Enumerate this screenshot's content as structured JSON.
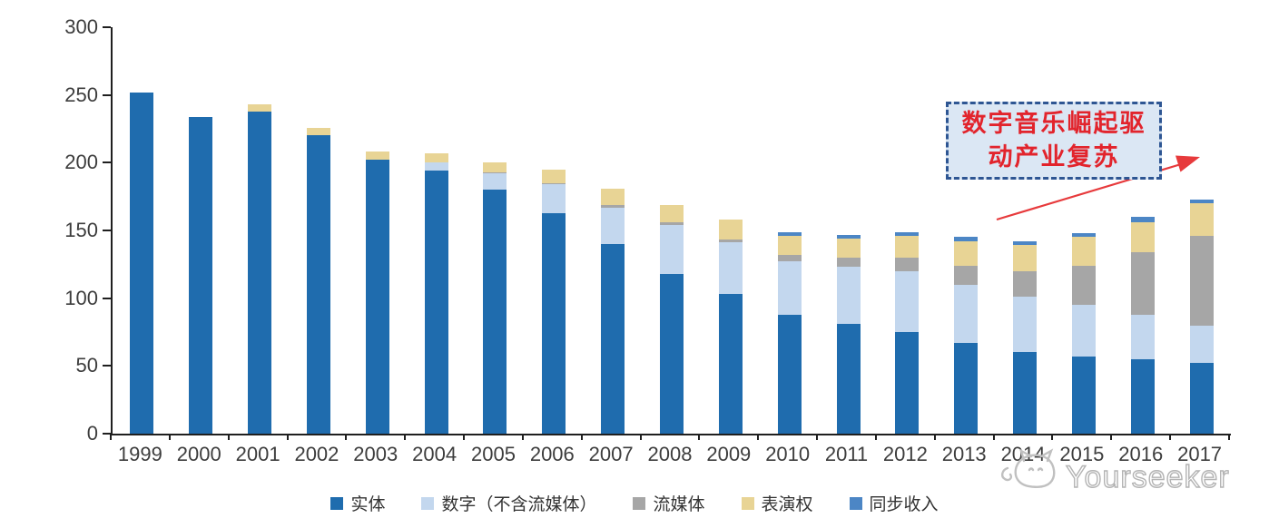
{
  "chart_data": {
    "type": "bar",
    "stacked": true,
    "title": "",
    "xlabel": "",
    "ylabel": "",
    "ylim": [
      0,
      300
    ],
    "grid": false,
    "legend_position": "bottom",
    "yticks": [
      0,
      50,
      100,
      150,
      200,
      250,
      300
    ],
    "categories": [
      "1999",
      "2000",
      "2001",
      "2002",
      "2003",
      "2004",
      "2005",
      "2006",
      "2007",
      "2008",
      "2009",
      "2010",
      "2011",
      "2012",
      "2013",
      "2014",
      "2015",
      "2016",
      "2017"
    ],
    "series": [
      {
        "name": "实体",
        "color": "#1f6cae",
        "values": [
          252,
          234,
          238,
          220,
          202,
          194,
          180,
          163,
          140,
          118,
          103,
          88,
          81,
          75,
          67,
          60,
          57,
          55,
          52
        ]
      },
      {
        "name": "数字（不含流媒体）",
        "color": "#c3d7ee",
        "values": [
          0,
          0,
          0,
          0,
          0,
          6,
          12,
          21,
          27,
          36,
          38,
          39,
          42,
          45,
          43,
          41,
          38,
          33,
          28
        ]
      },
      {
        "name": "流媒体",
        "color": "#a6a6a6",
        "values": [
          0,
          0,
          0,
          0,
          0,
          0,
          1,
          1,
          2,
          2,
          2,
          5,
          7,
          10,
          14,
          19,
          29,
          46,
          66
        ]
      },
      {
        "name": "表演权",
        "color": "#e8d495",
        "values": [
          0,
          0,
          5,
          6,
          6,
          7,
          7,
          10,
          12,
          13,
          15,
          14,
          14,
          16,
          18,
          19,
          21,
          22,
          24
        ]
      },
      {
        "name": "同步收入",
        "color": "#4c86c5",
        "values": [
          0,
          0,
          0,
          0,
          0,
          0,
          0,
          0,
          0,
          0,
          0,
          3,
          3,
          3,
          3,
          3,
          3,
          4,
          3
        ]
      }
    ]
  },
  "annotation": {
    "line1": "数字音乐崛起驱",
    "line2": "动产业复苏",
    "text_color": "#e2242c",
    "box_fill": "#dbe7f4",
    "border_color": "#2e5693",
    "arrow_color": "#e73a3c"
  },
  "watermark": {
    "text": "Yourseeker",
    "icon": "cat-logo-icon",
    "color": "#b3b3b3"
  },
  "axis": {
    "line_color": "#1f1f1f",
    "label_color": "#3d3d3d"
  }
}
